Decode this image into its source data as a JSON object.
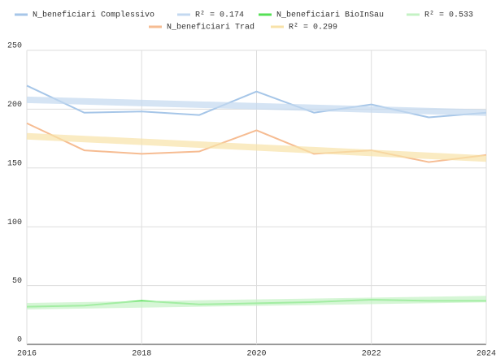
{
  "chart_data": {
    "type": "line",
    "xlim": [
      2016,
      2024
    ],
    "xticks": [
      2016,
      2018,
      2020,
      2022,
      2024
    ],
    "ylim": [
      0,
      250
    ],
    "yticks": [
      0,
      50,
      100,
      150,
      200,
      250
    ],
    "grid": true,
    "legend": "top",
    "series": [
      {
        "name": "N_beneficiari Complessivo",
        "color": "#a6c6e8",
        "width": 2,
        "opacity": 1,
        "x": [
          2016,
          2017,
          2018,
          2019,
          2020,
          2021,
          2022,
          2023,
          2024
        ],
        "values": [
          220,
          197,
          198,
          195,
          215,
          197,
          204,
          193,
          197
        ]
      },
      {
        "name": "R² = 0.174",
        "color": "#c3d8f0",
        "width": 8,
        "opacity": 0.7,
        "x": [
          2016,
          2024
        ],
        "values": [
          208,
          197
        ]
      },
      {
        "name": "N_beneficiari BioInSau",
        "color": "#55e055",
        "width": 2,
        "opacity": 1,
        "x": [
          2016,
          2017,
          2018,
          2019,
          2020,
          2021,
          2022,
          2023,
          2024
        ],
        "values": [
          32,
          33,
          37,
          34,
          35,
          36,
          38,
          37,
          37
        ]
      },
      {
        "name": "R² = 0.533",
        "color": "#c4f2c4",
        "width": 8,
        "opacity": 0.7,
        "x": [
          2016,
          2024
        ],
        "values": [
          32.5,
          38.5
        ]
      },
      {
        "name": "N_beneficiari Trad",
        "color": "#f6bc92",
        "width": 2,
        "opacity": 1,
        "x": [
          2016,
          2017,
          2018,
          2019,
          2020,
          2021,
          2022,
          2023,
          2024
        ],
        "values": [
          188,
          165,
          162,
          164,
          182,
          162,
          165,
          155,
          161
        ]
      },
      {
        "name": "R² = 0.299",
        "color": "#f8e2a8",
        "width": 8,
        "opacity": 0.7,
        "x": [
          2016,
          2024
        ],
        "values": [
          177,
          158
        ]
      }
    ]
  }
}
